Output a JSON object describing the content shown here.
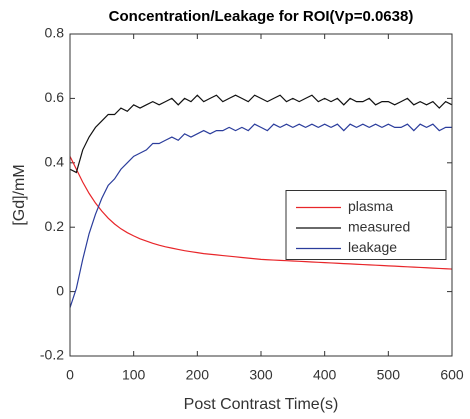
{
  "chart_data": {
    "type": "line",
    "title": "Concentration/Leakage for ROI(Vp=0.0638)",
    "xlabel": "Post Contrast Time(s)",
    "ylabel": "[Gd]/mM",
    "x": [
      0,
      10,
      20,
      30,
      40,
      50,
      60,
      70,
      80,
      90,
      100,
      110,
      120,
      130,
      140,
      150,
      160,
      170,
      180,
      190,
      200,
      210,
      220,
      230,
      240,
      250,
      260,
      270,
      280,
      290,
      300,
      310,
      320,
      330,
      340,
      350,
      360,
      370,
      380,
      390,
      400,
      410,
      420,
      430,
      440,
      450,
      460,
      470,
      480,
      490,
      500,
      510,
      520,
      530,
      540,
      550,
      560,
      570,
      580,
      590,
      600
    ],
    "series": [
      {
        "name": "plasma",
        "color": "#e8262a",
        "values": [
          0.42,
          0.38,
          0.34,
          0.305,
          0.275,
          0.25,
          0.228,
          0.21,
          0.195,
          0.183,
          0.173,
          0.164,
          0.157,
          0.15,
          0.144,
          0.139,
          0.135,
          0.131,
          0.127,
          0.124,
          0.121,
          0.118,
          0.116,
          0.114,
          0.112,
          0.11,
          0.108,
          0.106,
          0.104,
          0.102,
          0.1,
          0.099,
          0.098,
          0.097,
          0.096,
          0.095,
          0.094,
          0.093,
          0.092,
          0.091,
          0.09,
          0.089,
          0.088,
          0.087,
          0.086,
          0.085,
          0.084,
          0.083,
          0.082,
          0.081,
          0.08,
          0.079,
          0.078,
          0.077,
          0.076,
          0.075,
          0.074,
          0.073,
          0.072,
          0.071,
          0.07
        ]
      },
      {
        "name": "measured",
        "color": "#111111",
        "values": [
          0.38,
          0.37,
          0.44,
          0.48,
          0.51,
          0.53,
          0.55,
          0.55,
          0.57,
          0.56,
          0.58,
          0.57,
          0.58,
          0.59,
          0.58,
          0.59,
          0.6,
          0.58,
          0.6,
          0.59,
          0.61,
          0.59,
          0.6,
          0.61,
          0.59,
          0.6,
          0.61,
          0.6,
          0.59,
          0.61,
          0.6,
          0.59,
          0.6,
          0.61,
          0.59,
          0.6,
          0.59,
          0.6,
          0.61,
          0.59,
          0.6,
          0.59,
          0.6,
          0.58,
          0.6,
          0.59,
          0.59,
          0.6,
          0.58,
          0.59,
          0.59,
          0.58,
          0.59,
          0.6,
          0.58,
          0.59,
          0.58,
          0.59,
          0.57,
          0.59,
          0.58
        ]
      },
      {
        "name": "leakage",
        "color": "#2b3d9c",
        "values": [
          -0.05,
          0.01,
          0.1,
          0.18,
          0.24,
          0.29,
          0.33,
          0.35,
          0.38,
          0.4,
          0.42,
          0.43,
          0.44,
          0.46,
          0.46,
          0.47,
          0.48,
          0.47,
          0.49,
          0.48,
          0.49,
          0.5,
          0.49,
          0.5,
          0.5,
          0.51,
          0.5,
          0.51,
          0.5,
          0.52,
          0.51,
          0.5,
          0.52,
          0.51,
          0.52,
          0.51,
          0.52,
          0.51,
          0.52,
          0.51,
          0.52,
          0.51,
          0.52,
          0.5,
          0.52,
          0.51,
          0.52,
          0.51,
          0.52,
          0.51,
          0.52,
          0.51,
          0.51,
          0.52,
          0.5,
          0.52,
          0.51,
          0.52,
          0.5,
          0.51,
          0.51
        ]
      }
    ],
    "xlim": [
      0,
      600
    ],
    "xticks": [
      0,
      100,
      200,
      300,
      400,
      500,
      600
    ],
    "ylim": [
      -0.2,
      0.8
    ],
    "yticks": [
      -0.2,
      0,
      0.2,
      0.4,
      0.6,
      0.8
    ],
    "grid": false,
    "legend_position": "east"
  }
}
